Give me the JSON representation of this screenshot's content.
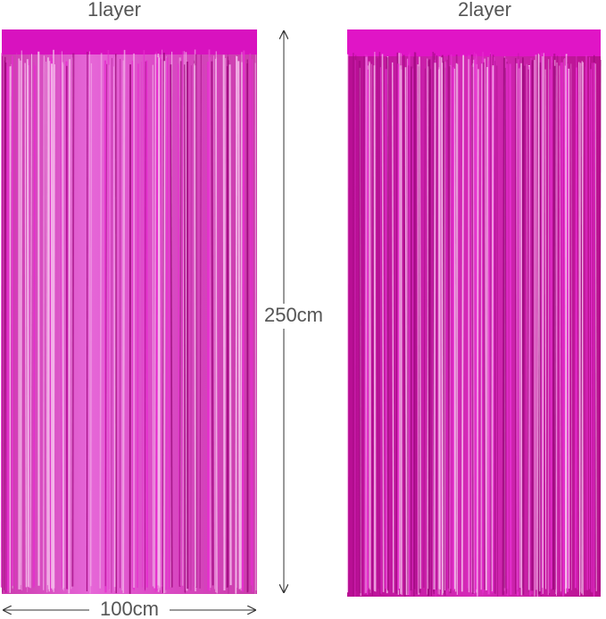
{
  "panels": [
    {
      "label": "1layer"
    },
    {
      "label": "2layer"
    }
  ],
  "dimensions": {
    "height": "250cm",
    "width": "100cm"
  }
}
